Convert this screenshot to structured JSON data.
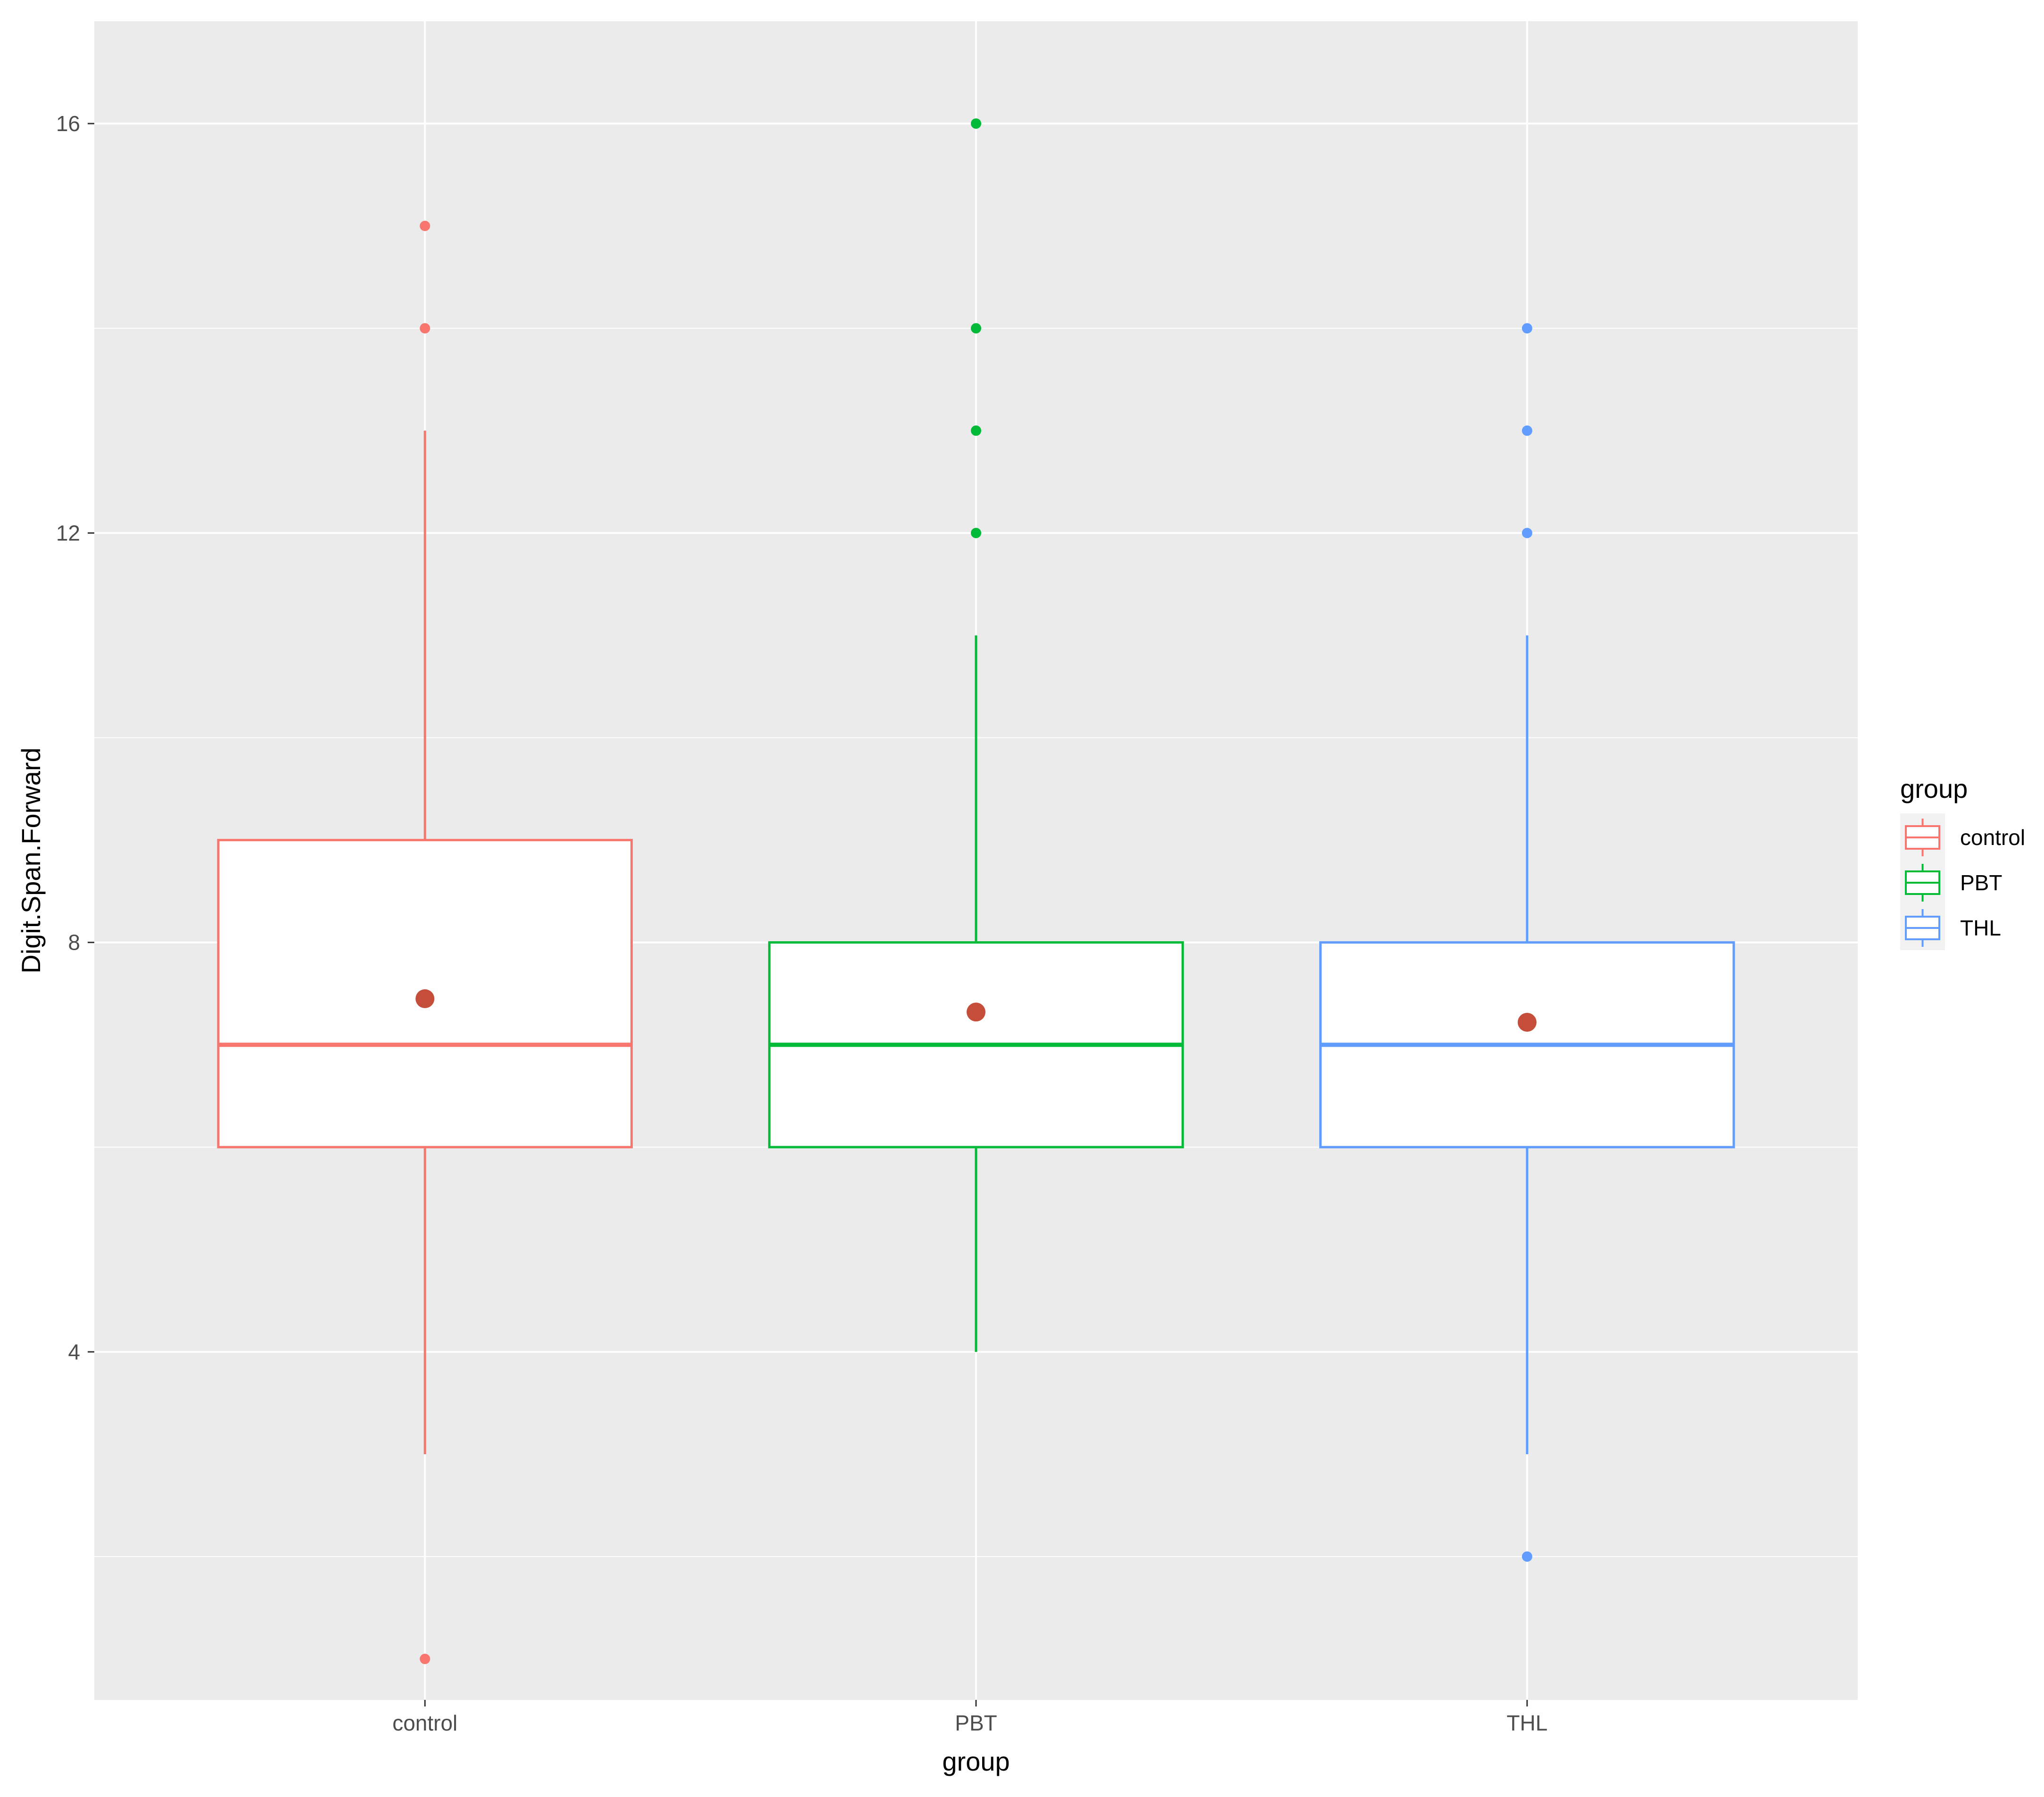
{
  "chart_data": {
    "type": "boxplot",
    "xlabel": "group",
    "ylabel": "Digit.Span.Forward",
    "categories": [
      "control",
      "PBT",
      "THL"
    ],
    "ylim": [
      0.6,
      17.0
    ],
    "yticks": [
      4,
      8,
      12,
      16
    ],
    "grid": true,
    "legend": {
      "title": "group",
      "position": "right",
      "entries": [
        "control",
        "PBT",
        "THL"
      ]
    },
    "series": [
      {
        "name": "control",
        "color": "#F8766D",
        "q1": 6,
        "median": 7,
        "q3": 9,
        "whisker_low": 3,
        "whisker_high": 13,
        "mean": 7.45,
        "outliers": [
          1,
          14,
          15
        ]
      },
      {
        "name": "PBT",
        "color": "#00BA38",
        "q1": 6,
        "median": 7,
        "q3": 8,
        "whisker_low": 4,
        "whisker_high": 11,
        "mean": 7.32,
        "outliers": [
          12,
          13,
          14,
          16
        ]
      },
      {
        "name": "THL",
        "color": "#619CFF",
        "q1": 6,
        "median": 7,
        "q3": 8,
        "whisker_low": 3,
        "whisker_high": 11,
        "mean": 7.22,
        "outliers": [
          2,
          12,
          13,
          14
        ]
      }
    ],
    "mean_marker_color": "#C44E3A",
    "panel_background": "#EBEBEB"
  }
}
